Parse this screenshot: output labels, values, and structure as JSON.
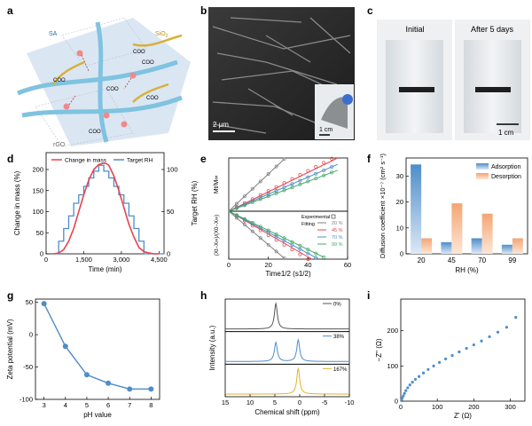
{
  "panels": {
    "a": {
      "letter": "a",
      "labels": [
        "SA",
        "SiO",
        "2",
        "rGO",
        "COO",
        "COO",
        "COO",
        "COO",
        "COO",
        "COO"
      ]
    },
    "b": {
      "letter": "b",
      "scale_main": "2 μm",
      "scale_inset": "1 cm"
    },
    "c": {
      "letter": "c",
      "left_label": "Initial",
      "right_label": "After 5 days",
      "scale": "1 cm"
    }
  },
  "chart_data": [
    {
      "panel": "d",
      "type": "line",
      "xlabel": "Time (min)",
      "ylabel": "Change in mass (%)",
      "y2label": "Target RH (%)",
      "xlim": [
        0,
        4700
      ],
      "ylim": [
        0,
        240
      ],
      "y2lim": [
        0,
        120
      ],
      "xticks": [
        0,
        1500,
        3000,
        4500
      ],
      "xticklabels": [
        "0",
        "1,500",
        "3,000",
        "4,500"
      ],
      "yticks": [
        0,
        50,
        100,
        150,
        200
      ],
      "y2ticks": [
        0,
        50,
        100
      ],
      "legend": "top-left",
      "series": [
        {
          "name": "Change in mass",
          "axis": "left",
          "color": "#e8434c",
          "x": [
            300,
            500,
            700,
            900,
            1100,
            1300,
            1500,
            1700,
            1900,
            2100,
            2300,
            2400,
            2500,
            2700,
            2900,
            3100,
            3300,
            3500,
            3700,
            3900,
            4100,
            4300,
            4500
          ],
          "y": [
            0,
            2,
            10,
            30,
            60,
            100,
            140,
            175,
            200,
            212,
            215,
            214,
            210,
            185,
            150,
            110,
            70,
            40,
            15,
            5,
            2,
            0,
            0
          ]
        },
        {
          "name": "Target RH",
          "axis": "right",
          "color": "#4e8dc9",
          "step": true,
          "x": [
            300,
            500,
            700,
            900,
            1100,
            1300,
            1500,
            1700,
            1900,
            2100,
            2300,
            2500,
            2700,
            2900,
            3100,
            3300,
            3500,
            3700,
            3900,
            4100,
            4300
          ],
          "y": [
            0,
            15,
            30,
            45,
            60,
            70,
            80,
            90,
            98,
            105,
            98,
            90,
            80,
            70,
            60,
            45,
            30,
            15,
            0,
            0,
            0
          ]
        }
      ]
    },
    {
      "panel": "e",
      "type": "scatter",
      "ylabel_top": "Mt/M∞",
      "ylabel_bottom": "(Xt−X∞)/(X0−X∞)",
      "xlabel": "Time1/2 (s1/2)",
      "xlim": [
        0,
        60
      ],
      "xticks": [
        0,
        20,
        40,
        60
      ],
      "legend_title": "Experimental",
      "legend_fit": "Fitting",
      "legend": "top-right",
      "series": [
        {
          "name": "20 %",
          "color": "#808080"
        },
        {
          "name": "45 %",
          "color": "#e8434c"
        },
        {
          "name": "70 %",
          "color": "#4e8dc9"
        },
        {
          "name": "99 %",
          "color": "#45a868"
        }
      ],
      "top_slopes": [
        0.035,
        0.019,
        0.016,
        0.014
      ],
      "bottom_slopes": [
        0.035,
        0.025,
        0.022,
        0.02
      ],
      "top_xmax": [
        28,
        55,
        55,
        55
      ],
      "bottom_xmax": [
        28,
        42,
        45,
        48
      ]
    },
    {
      "panel": "f",
      "type": "bar",
      "xlabel": "RH (%)",
      "ylabel": "Diffusion coefficient ×10⁻⁷ (cm² s⁻¹)",
      "categories": [
        "20",
        "45",
        "70",
        "99"
      ],
      "ylim": [
        0,
        37
      ],
      "yticks": [
        0,
        10,
        20,
        30
      ],
      "legend": "top-right",
      "series": [
        {
          "name": "Adsorption",
          "color": "#4e8dc9",
          "values": [
            34.5,
            4.5,
            6.0,
            3.5
          ]
        },
        {
          "name": "Desorption",
          "color": "#f4a574",
          "values": [
            6.0,
            19.5,
            15.5,
            6.0
          ]
        }
      ]
    },
    {
      "panel": "g",
      "type": "line",
      "xlabel": "pH value",
      "ylabel": "Zeta potential (mV)",
      "xlim": [
        2.6,
        8.4
      ],
      "ylim": [
        -100,
        55
      ],
      "xticks": [
        3,
        4,
        5,
        6,
        7,
        8
      ],
      "yticks": [
        50,
        0,
        -50,
        -100
      ],
      "series": [
        {
          "name": "",
          "color": "#4e8dc9",
          "x": [
            3,
            4,
            5,
            6,
            7,
            8
          ],
          "y": [
            48,
            -18,
            -62,
            -75,
            -84,
            -84
          ]
        }
      ]
    },
    {
      "panel": "h",
      "type": "line",
      "xlabel": "Chemical shift (ppm)",
      "ylabel": "Intensity (a.u.)",
      "xlim": [
        15,
        -10
      ],
      "xticks": [
        15,
        10,
        5,
        0,
        -5,
        -10
      ],
      "series": [
        {
          "name": "0%",
          "color": "#555555",
          "peaks": [
            [
              4.8,
              1.0,
              0.35
            ]
          ]
        },
        {
          "name": "38%",
          "color": "#4e8dc9",
          "peaks": [
            [
              4.8,
              0.75,
              0.35
            ],
            [
              0.3,
              0.85,
              0.35
            ]
          ]
        },
        {
          "name": "167%",
          "color": "#e4b232",
          "peaks": [
            [
              0.3,
              1.0,
              0.35
            ]
          ]
        }
      ]
    },
    {
      "panel": "i",
      "type": "scatter",
      "xlabel": "Z' (Ω)",
      "ylabel": "−Z'' (Ω)",
      "xlim": [
        0,
        340
      ],
      "ylim": [
        0,
        290
      ],
      "xticks": [
        0,
        100,
        200,
        300
      ],
      "yticks": [
        0,
        100,
        200
      ],
      "series": [
        {
          "name": "",
          "color": "#4e8dc9",
          "x": [
            2,
            4,
            7,
            10,
            14,
            19,
            25,
            32,
            40,
            50,
            62,
            75,
            90,
            106,
            123,
            141,
            160,
            180,
            200,
            221,
            243,
            266,
            290,
            315
          ],
          "y": [
            4,
            9,
            15,
            22,
            30,
            38,
            46,
            54,
            62,
            70,
            80,
            90,
            100,
            110,
            120,
            130,
            140,
            150,
            160,
            171,
            183,
            196,
            210,
            238
          ]
        }
      ]
    }
  ]
}
